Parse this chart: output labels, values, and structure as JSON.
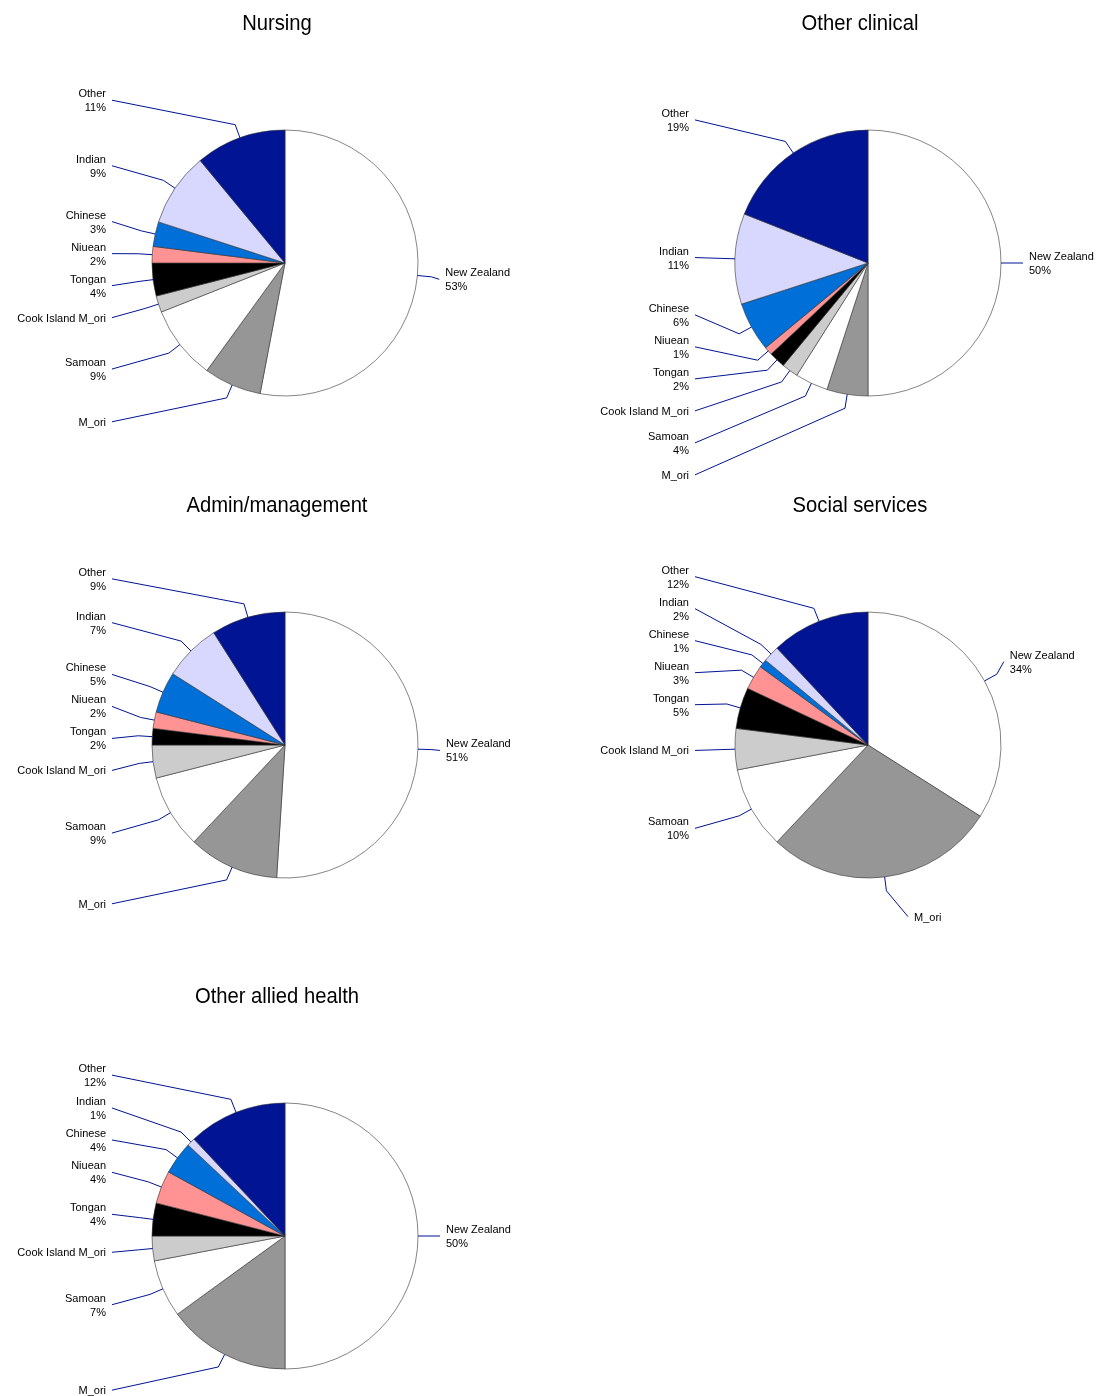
{
  "chart_data": [
    {
      "type": "pie",
      "title": "Nursing",
      "categories": [
        "New Zealand",
        "M_ori",
        "Samoan",
        "Cook Island M_ori",
        "Tongan",
        "Niuean",
        "Chinese",
        "Indian",
        "Other"
      ],
      "values": [
        53,
        7,
        9,
        2,
        4,
        2,
        3,
        9,
        11
      ],
      "value_labels": [
        "53%",
        null,
        "9%",
        null,
        "4%",
        "2%",
        "3%",
        "9%",
        "11%"
      ],
      "colors": [
        "#ffffff",
        "#969696",
        "#ffffff",
        "#cccccc",
        "#000000",
        "#ff9393",
        "#0070d8",
        "#d8d8ff",
        "#001494"
      ]
    },
    {
      "type": "pie",
      "title": "Other clinical",
      "categories": [
        "New Zealand",
        "M_ori",
        "Samoan",
        "Cook Island M_ori",
        "Tongan",
        "Niuean",
        "Chinese",
        "Indian",
        "Other"
      ],
      "values": [
        50,
        5,
        4,
        2,
        2,
        1,
        6,
        11,
        19
      ],
      "value_labels": [
        "50%",
        null,
        "4%",
        null,
        "2%",
        "1%",
        "6%",
        "11%",
        "19%"
      ],
      "colors": [
        "#ffffff",
        "#969696",
        "#ffffff",
        "#cccccc",
        "#000000",
        "#ff9393",
        "#0070d8",
        "#d8d8ff",
        "#001494"
      ]
    },
    {
      "type": "pie",
      "title": "Admin/management",
      "categories": [
        "New Zealand",
        "M_ori",
        "Samoan",
        "Cook Island M_ori",
        "Tongan",
        "Niuean",
        "Chinese",
        "Indian",
        "Other"
      ],
      "values": [
        51,
        11,
        9,
        4,
        2,
        2,
        5,
        7,
        9
      ],
      "value_labels": [
        "51%",
        null,
        "9%",
        null,
        "2%",
        "2%",
        "5%",
        "7%",
        "9%"
      ],
      "colors": [
        "#ffffff",
        "#969696",
        "#ffffff",
        "#cccccc",
        "#000000",
        "#ff9393",
        "#0070d8",
        "#d8d8ff",
        "#001494"
      ]
    },
    {
      "type": "pie",
      "title": "Social services",
      "categories": [
        "New Zealand",
        "M_ori",
        "Samoan",
        "Cook Island M_ori",
        "Tongan",
        "Niuean",
        "Chinese",
        "Indian",
        "Other"
      ],
      "values": [
        34,
        28,
        10,
        5,
        5,
        3,
        1,
        2,
        12
      ],
      "value_labels": [
        "34%",
        null,
        "10%",
        null,
        "5%",
        "3%",
        "1%",
        "2%",
        "12%"
      ],
      "colors": [
        "#ffffff",
        "#969696",
        "#ffffff",
        "#cccccc",
        "#000000",
        "#ff9393",
        "#0070d8",
        "#d8d8ff",
        "#001494"
      ]
    },
    {
      "type": "pie",
      "title": "Other allied health",
      "categories": [
        "New Zealand",
        "M_ori",
        "Samoan",
        "Cook Island M_ori",
        "Tongan",
        "Niuean",
        "Chinese",
        "Indian",
        "Other"
      ],
      "values": [
        50,
        15,
        7,
        3,
        4,
        4,
        4,
        1,
        12
      ],
      "value_labels": [
        "50%",
        null,
        "7%",
        null,
        "4%",
        "4%",
        "4%",
        "1%",
        "12%"
      ],
      "colors": [
        "#ffffff",
        "#969696",
        "#ffffff",
        "#cccccc",
        "#000000",
        "#ff9393",
        "#0070d8",
        "#d8d8ff",
        "#001494"
      ]
    }
  ]
}
